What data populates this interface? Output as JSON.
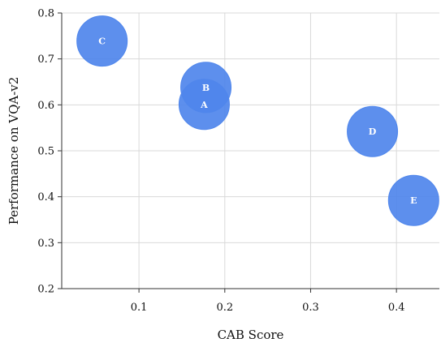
{
  "chart_data": {
    "type": "scatter",
    "title": "",
    "xlabel": "CAB Score",
    "ylabel": "Performance on VQA-v2",
    "xlim": [
      0.01,
      0.45
    ],
    "ylim": [
      0.2,
      0.8
    ],
    "x_ticks": [
      0.1,
      0.2,
      0.3,
      0.4
    ],
    "y_ticks": [
      0.2,
      0.3,
      0.4,
      0.5,
      0.6,
      0.7,
      0.8
    ],
    "x_tick_labels": [
      "0.1",
      "0.2",
      "0.3",
      "0.4"
    ],
    "y_tick_labels": [
      "0.2",
      "0.3",
      "0.4",
      "0.5",
      "0.6",
      "0.7",
      "0.8"
    ],
    "grid": true,
    "legend": null,
    "marker_color": "#4F86EC",
    "points": [
      {
        "label": "A",
        "x": 0.176,
        "y": 0.601
      },
      {
        "label": "B",
        "x": 0.178,
        "y": 0.638
      },
      {
        "label": "C",
        "x": 0.057,
        "y": 0.739
      },
      {
        "label": "D",
        "x": 0.372,
        "y": 0.542
      },
      {
        "label": "E",
        "x": 0.42,
        "y": 0.392
      }
    ]
  }
}
